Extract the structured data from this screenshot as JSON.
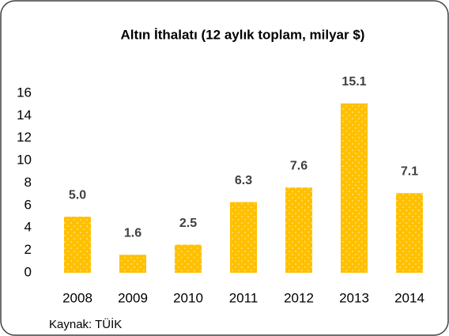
{
  "chart_data": {
    "type": "bar",
    "title": "Altın İthalatı (12 aylık toplam, milyar $)",
    "categories": [
      "2008",
      "2009",
      "2010",
      "2011",
      "2012",
      "2013",
      "2014"
    ],
    "values": [
      5.0,
      1.6,
      2.5,
      6.3,
      7.6,
      15.1,
      7.1
    ],
    "value_labels": [
      "5.0",
      "1.6",
      "2.5",
      "6.3",
      "7.6",
      "15.1",
      "7.1"
    ],
    "color": "#ffc000",
    "ylim": [
      0,
      16
    ],
    "yticks": [
      0,
      2,
      4,
      6,
      8,
      10,
      12,
      14,
      16
    ],
    "grid": false,
    "source": "Kaynak: TÜİK"
  }
}
